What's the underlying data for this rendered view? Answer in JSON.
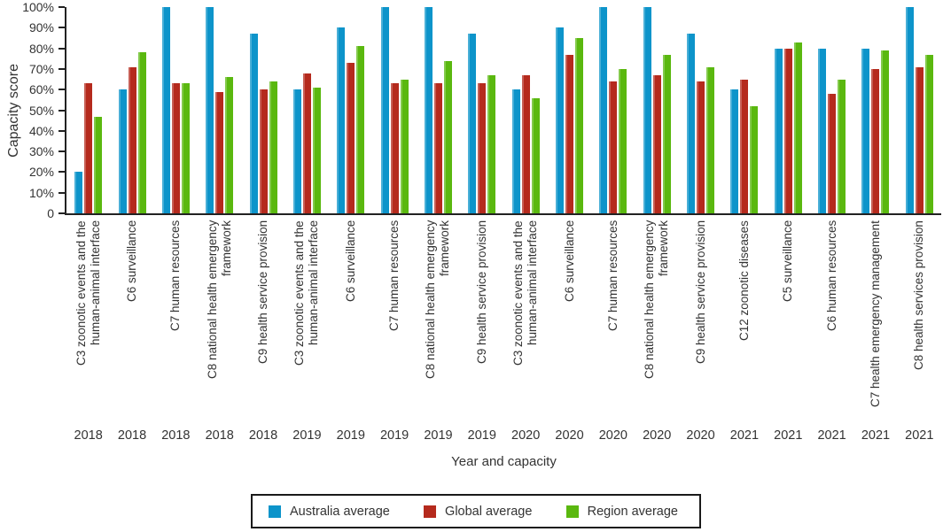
{
  "chart_data": {
    "type": "bar",
    "title": "",
    "ylabel": "Capacity score",
    "xlabel": "Year and capacity",
    "ylim": [
      0,
      100
    ],
    "grid": false,
    "legend_position": "bottom",
    "y_ticks": [
      "0",
      "10%",
      "20%",
      "30%",
      "40%",
      "50%",
      "60%",
      "70%",
      "80%",
      "90%",
      "100%"
    ],
    "categories": [
      {
        "capacity": "C3 zoonotic events and the\nhuman-animal interface",
        "year": "2018"
      },
      {
        "capacity": "C6 surveillance",
        "year": "2018"
      },
      {
        "capacity": "C7 human resources",
        "year": "2018"
      },
      {
        "capacity": "C8 national health emergency\nframework",
        "year": "2018"
      },
      {
        "capacity": "C9 health service provision",
        "year": "2018"
      },
      {
        "capacity": "C3 zoonotic events and the\nhuman-animal interface",
        "year": "2019"
      },
      {
        "capacity": "C6 surveillance",
        "year": "2019"
      },
      {
        "capacity": "C7 human resources",
        "year": "2019"
      },
      {
        "capacity": "C8 national health emergency\nframework",
        "year": "2019"
      },
      {
        "capacity": "C9 health service provision",
        "year": "2019"
      },
      {
        "capacity": "C3 zoonotic events and the\nhuman-animal interface",
        "year": "2020"
      },
      {
        "capacity": "C6 surveillance",
        "year": "2020"
      },
      {
        "capacity": "C7 human resources",
        "year": "2020"
      },
      {
        "capacity": "C8 national health emergency\nframework",
        "year": "2020"
      },
      {
        "capacity": "C9 health service provision",
        "year": "2020"
      },
      {
        "capacity": "C12 zoonotic diseases",
        "year": "2021"
      },
      {
        "capacity": "C5 surveillance",
        "year": "2021"
      },
      {
        "capacity": "C6 human resources",
        "year": "2021"
      },
      {
        "capacity": "C7 health emergency management",
        "year": "2021"
      },
      {
        "capacity": "C8 health services provision",
        "year": "2021"
      }
    ],
    "series": [
      {
        "name": "Australia average",
        "color": "#0d94ca",
        "values": [
          20,
          60,
          100,
          100,
          87,
          60,
          90,
          100,
          100,
          87,
          60,
          90,
          100,
          100,
          87,
          60,
          80,
          80,
          80,
          100
        ]
      },
      {
        "name": "Global average",
        "color": "#b52a1d",
        "values": [
          63,
          71,
          63,
          59,
          60,
          68,
          73,
          63,
          63,
          63,
          67,
          77,
          64,
          67,
          64,
          65,
          80,
          58,
          70,
          71
        ]
      },
      {
        "name": "Region average",
        "color": "#5ab80f",
        "values": [
          47,
          78,
          63,
          66,
          64,
          61,
          81,
          65,
          74,
          67,
          56,
          85,
          70,
          77,
          71,
          52,
          83,
          65,
          79,
          77
        ]
      }
    ]
  }
}
